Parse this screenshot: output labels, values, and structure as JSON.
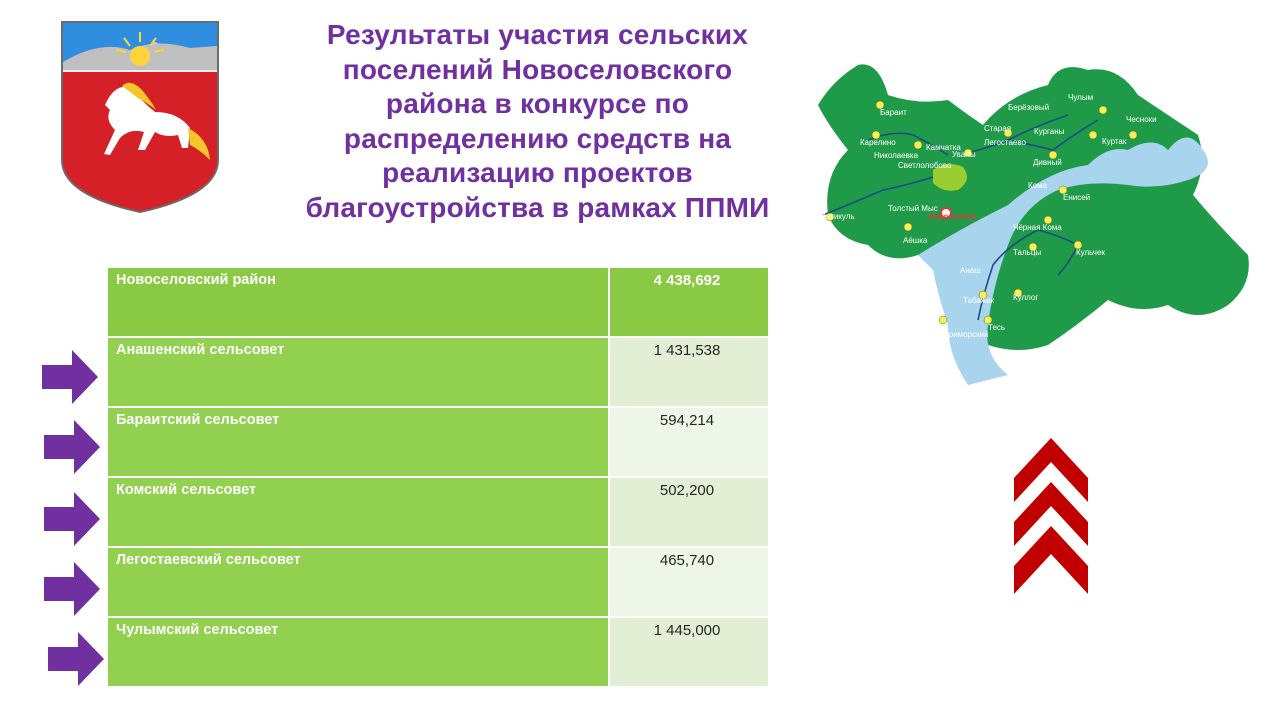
{
  "title": "Результаты участия сельских поселений Новоселовского района в конкурсе по распределению средств на реализацию проектов благоустройства в рамках ППМИ",
  "table": {
    "rows": [
      {
        "name": "Новоселовский район",
        "value": "4 438,692"
      },
      {
        "name": "Анашенский сельсовет",
        "value": "1 431,538"
      },
      {
        "name": "Бараитский сельсовет",
        "value": "594,214"
      },
      {
        "name": "Комский сельсовет",
        "value": "502,200"
      },
      {
        "name": "Легостаевский сельсовет",
        "value": "465,740"
      },
      {
        "name": "Чулымский сельсовет",
        "value": "1 445,000"
      }
    ]
  },
  "map": {
    "places": {
      "baraït": "Бараит",
      "karelino": "Карелино",
      "nikolaevka": "Николаевка",
      "kamchatka": "Камчатка",
      "svetlolobovo": "Светлолобово",
      "uvaly": "Увалы",
      "staraya": "Старая",
      "legostaevo": "Легостаево",
      "berezovyi": "Берёзовый",
      "chulym": "Чулым",
      "kurgany": "Курганы",
      "chesnoki": "Чесноки",
      "kurtak": "Куртак",
      "tolstyi_mys": "Толстый Мыс",
      "novoselovo": "Новоселово",
      "intikul": "Интикуль",
      "aeshka": "Аёшка",
      "koma": "Кома",
      "enisei": "Енисей",
      "chernaya_koma": "Чёрная Кома",
      "divnyi": "Дивный",
      "tsaltsy": "Тальцы",
      "kulchek": "Кульчек",
      "anash": "Анаш",
      "tabazhak": "Табажак",
      "kullog": "Куллог",
      "tes": "Тесь",
      "primorskiy": "Приморский"
    },
    "colors": {
      "land": "#1f9a48",
      "water": "#a9d4ee",
      "town": "#9acd32",
      "road": "#1b4e80",
      "dot": "#f3f05a"
    }
  },
  "colors": {
    "title": "#7030a0",
    "row_name_bg": "#92d050",
    "row_value_bg": "#e2efd5",
    "arrow": "#7030a0",
    "chevron": "#c00000"
  },
  "icons": {
    "coat": "coat-of-arms-icon",
    "arrow": "right-arrow-icon",
    "chevron": "up-chevron-icon"
  }
}
